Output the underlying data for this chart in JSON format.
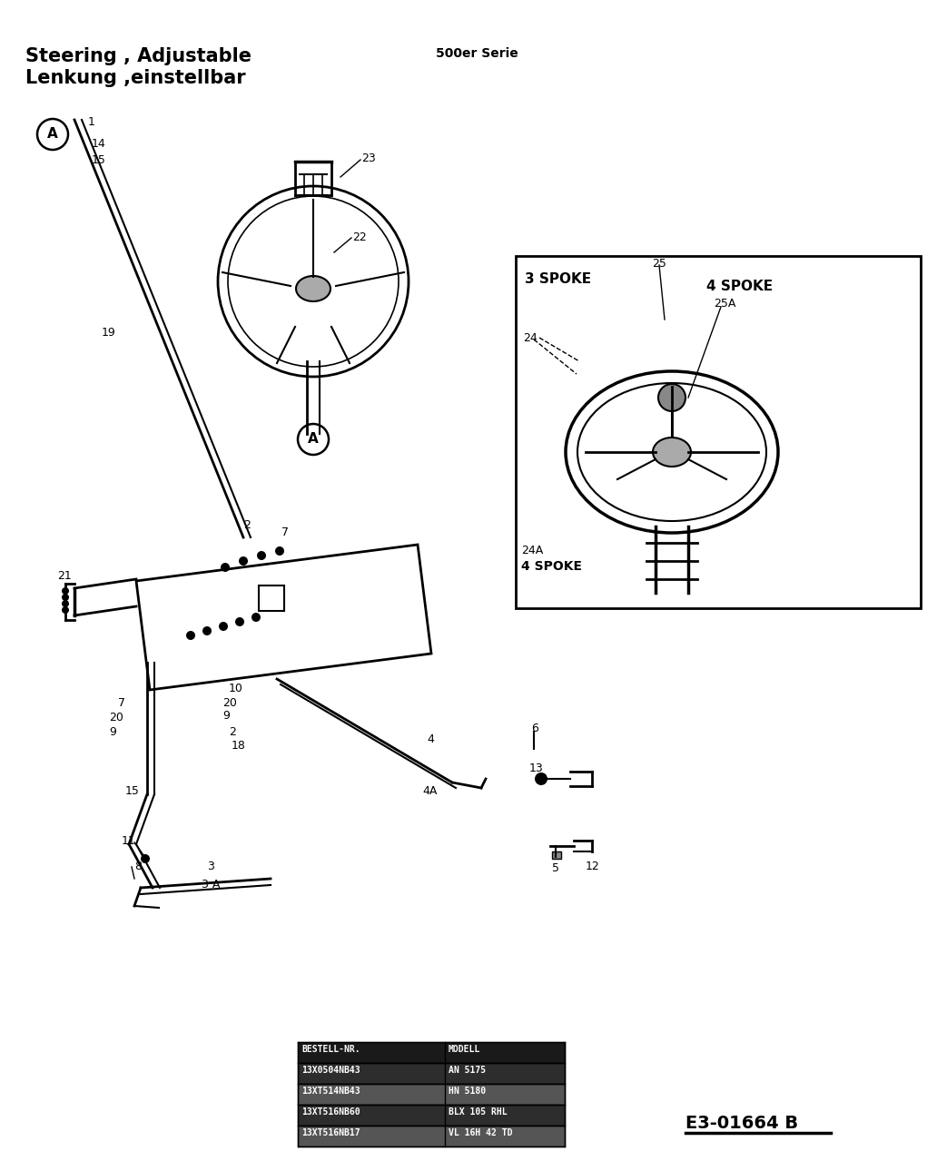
{
  "title_line1": "Steering , Adjustable",
  "title_line2": "Lenkung ,einstellbar",
  "subtitle": "500er Serie",
  "diagram_code": "E3-01664 B",
  "bg_color": "#ffffff",
  "text_color": "#000000",
  "table_rows": [
    [
      "13X0504NB43",
      "AN 5175"
    ],
    [
      "13XT514NB43",
      "HN 5180"
    ],
    [
      "13XT516NB60",
      "BLX 105 RHL"
    ],
    [
      "13XT516NB17",
      "VL 16H 42 TD"
    ]
  ],
  "figwidth": 10.32,
  "figheight": 12.79,
  "dpi": 100
}
